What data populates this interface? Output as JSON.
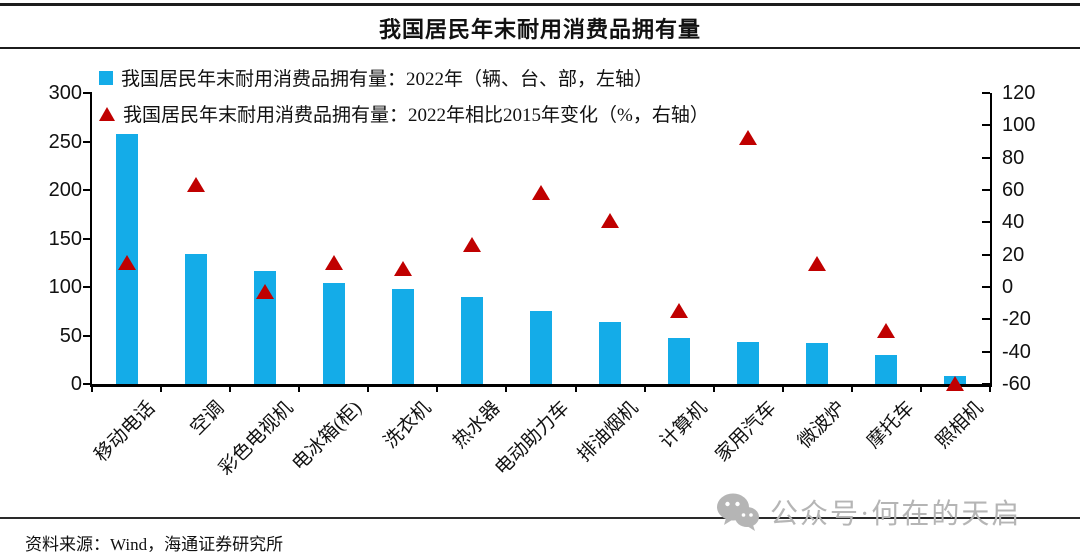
{
  "title": "我国居民年末耐用消费品拥有量",
  "source_note": "资料来源：Wind，海通证券研究所",
  "watermark": {
    "icon": "wechat-icon",
    "text": "公众号·何在的天启",
    "color": "#b5b5b5"
  },
  "colors": {
    "bar": "#14ACE8",
    "triangle": "#C00000",
    "axis": "#000000",
    "rule": "#1c1c1c"
  },
  "chart_data": {
    "type": "bar",
    "subtype": "bar-and-scatter-dual-axis",
    "title": "我国居民年末耐用消费品拥有量",
    "grid": false,
    "legend_position": "top-left",
    "categories": [
      "移动电话",
      "空调",
      "彩色电视机",
      "电冰箱(柜)",
      "洗衣机",
      "热水器",
      "电动助力车",
      "排油烟机",
      "计算机",
      "家用汽车",
      "微波炉",
      "摩托车",
      "照相机"
    ],
    "series": [
      {
        "name": "我国居民年末耐用消费品拥有量：2022年（辆、台、部，左轴）",
        "type": "bar",
        "axis": "left",
        "marker": "square",
        "color": "#14ACE8",
        "values": [
          258,
          134,
          117,
          104,
          98,
          90,
          75,
          64,
          47,
          43,
          42,
          30,
          8
        ]
      },
      {
        "name": "我国居民年末耐用消费品拥有量：2022年相比2015年变化（%，右轴）",
        "type": "scatter",
        "axis": "right",
        "marker": "triangle",
        "color": "#C00000",
        "values": [
          15,
          63,
          -3,
          15,
          11,
          26,
          58,
          41,
          -15,
          92,
          14,
          -27,
          -60
        ]
      }
    ],
    "left_axis": {
      "min": 0,
      "max": 300,
      "step": 50,
      "ticks": [
        0,
        50,
        100,
        150,
        200,
        250,
        300
      ]
    },
    "right_axis": {
      "min": -60,
      "max": 120,
      "step": 20,
      "ticks": [
        -60,
        -40,
        -20,
        0,
        20,
        40,
        60,
        80,
        100,
        120
      ]
    }
  }
}
